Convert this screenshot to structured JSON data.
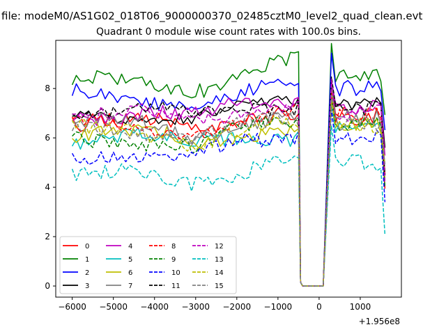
{
  "figure": {
    "suptitle": "file: modeM0/AS1G02_018T06_9000000370_02485cztM0_level2_quad_clean.evt"
  },
  "chart_data": {
    "type": "line",
    "title": "Quadrant 0 module wise count rates with 100.0s bins.",
    "xlabel": "",
    "ylabel": "",
    "x_offset_label": "+1.956e8",
    "xlim": [
      -6400,
      2000
    ],
    "ylim": [
      -0.45,
      9.95
    ],
    "xticks": [
      -6000,
      -5000,
      -4000,
      -3000,
      -2000,
      -1000,
      0,
      1000
    ],
    "xtick_labels": [
      "−6000",
      "−5000",
      "−4000",
      "−3000",
      "−2000",
      "−1000",
      "0",
      "1000"
    ],
    "yticks": [
      0,
      2,
      4,
      6,
      8
    ],
    "ytick_labels": [
      "0",
      "2",
      "4",
      "6",
      "8"
    ],
    "legend": {
      "placement": "lower-left",
      "ncol": 4
    },
    "gap": {
      "drop_start": -500,
      "zero_from": -400,
      "zero_to": 100,
      "resume": 300,
      "end": 1600
    },
    "series": [
      {
        "name": "0",
        "color": "#ff0000",
        "dash": "solid",
        "level": 6.5,
        "noise": 0.35,
        "trend": 0.6,
        "after": 6.9,
        "seed": 11
      },
      {
        "name": "1",
        "color": "#008000",
        "dash": "solid",
        "level": 8.2,
        "noise": 0.3,
        "trend": 0.9,
        "after": 8.5,
        "seed": 12
      },
      {
        "name": "2",
        "color": "#0000ff",
        "dash": "solid",
        "level": 7.7,
        "noise": 0.3,
        "trend": 0.2,
        "after": 8.0,
        "seed": 13
      },
      {
        "name": "3",
        "color": "#000000",
        "dash": "solid",
        "level": 7.0,
        "noise": 0.25,
        "trend": 0.4,
        "after": 7.4,
        "seed": 14
      },
      {
        "name": "4",
        "color": "#bf00bf",
        "dash": "solid",
        "level": 7.0,
        "noise": 0.3,
        "trend": 0.5,
        "after": 7.2,
        "seed": 15
      },
      {
        "name": "5",
        "color": "#00bfbf",
        "dash": "solid",
        "level": 6.0,
        "noise": 0.3,
        "trend": 0.2,
        "after": 6.3,
        "seed": 16
      },
      {
        "name": "6",
        "color": "#bfbf00",
        "dash": "solid",
        "level": 6.1,
        "noise": 0.3,
        "trend": 0.3,
        "after": 6.5,
        "seed": 17
      },
      {
        "name": "7",
        "color": "#808080",
        "dash": "solid",
        "level": 6.5,
        "noise": 0.3,
        "trend": 0.3,
        "after": 6.8,
        "seed": 18
      },
      {
        "name": "8",
        "color": "#ff0000",
        "dash": "dashed",
        "level": 6.5,
        "noise": 0.3,
        "trend": 0.4,
        "after": 6.9,
        "seed": 19
      },
      {
        "name": "9",
        "color": "#008000",
        "dash": "dashed",
        "level": 5.9,
        "noise": 0.3,
        "trend": 0.6,
        "after": 6.5,
        "seed": 20
      },
      {
        "name": "10",
        "color": "#0000ff",
        "dash": "dashed",
        "level": 5.4,
        "noise": 0.3,
        "trend": 0.6,
        "after": 6.0,
        "seed": 21
      },
      {
        "name": "11",
        "color": "#000000",
        "dash": "dashed",
        "level": 7.1,
        "noise": 0.25,
        "trend": 0.3,
        "after": 7.2,
        "seed": 22
      },
      {
        "name": "12",
        "color": "#bf00bf",
        "dash": "dashed",
        "level": 6.9,
        "noise": 0.3,
        "trend": 0.5,
        "after": 7.0,
        "seed": 23
      },
      {
        "name": "13",
        "color": "#00bfbf",
        "dash": "dashed",
        "level": 4.4,
        "noise": 0.3,
        "trend": 0.8,
        "after": 5.0,
        "seed": 24
      },
      {
        "name": "14",
        "color": "#bfbf00",
        "dash": "dashed",
        "level": 6.2,
        "noise": 0.3,
        "trend": 0.3,
        "after": 6.5,
        "seed": 25
      },
      {
        "name": "15",
        "color": "#808080",
        "dash": "dashed",
        "level": 6.4,
        "noise": 0.3,
        "trend": 0.2,
        "after": 6.6,
        "seed": 26
      }
    ]
  }
}
